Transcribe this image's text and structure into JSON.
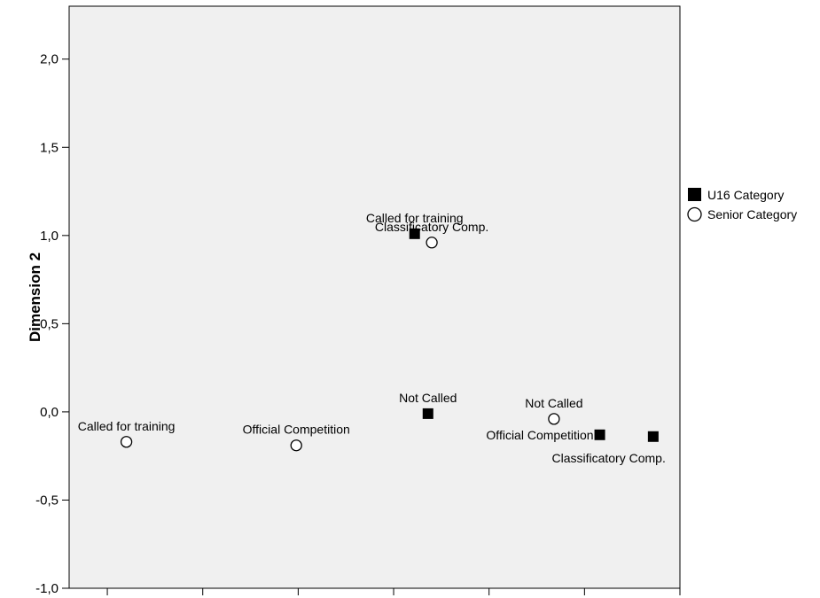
{
  "chart_data": {
    "type": "scatter",
    "title": "",
    "xlabel": "",
    "ylabel": "Dimension 2",
    "xlim": [
      -2.3,
      0.9
    ],
    "ylim": [
      -1.0,
      2.3
    ],
    "y_ticks": [
      {
        "value": 2.0,
        "label": "2,0"
      },
      {
        "value": 1.5,
        "label": "1,5"
      },
      {
        "value": 1.0,
        "label": "1,0"
      },
      {
        "value": 0.5,
        "label": "0,5"
      },
      {
        "value": 0.0,
        "label": "0,0"
      },
      {
        "value": -0.5,
        "label": "-0,5"
      },
      {
        "value": -1.0,
        "label": "-1,0"
      }
    ],
    "x_tick_values": [
      -2.1,
      -1.6,
      -1.1,
      -0.6,
      -0.1,
      0.4,
      0.9
    ],
    "grid": false,
    "legend_position": "right",
    "plot_background": "#f0f0f0",
    "series": [
      {
        "name": "U16 Category",
        "marker": "filled-square",
        "color": "#000000",
        "points": [
          {
            "x": -0.49,
            "y": 1.01,
            "label": "Called for training",
            "label_pos": "above"
          },
          {
            "x": -0.42,
            "y": -0.01,
            "label": "Not Called",
            "label_pos": "above"
          },
          {
            "x": 0.48,
            "y": -0.13,
            "label": "Official Competition",
            "label_pos": "left"
          },
          {
            "x": 0.76,
            "y": -0.14,
            "label": "Classificatory Comp.",
            "label_pos": "below-left"
          }
        ]
      },
      {
        "name": "Senior Category",
        "marker": "open-circle",
        "color": "#000000",
        "points": [
          {
            "x": -2.0,
            "y": -0.17,
            "label": "Called for training",
            "label_pos": "above"
          },
          {
            "x": -1.11,
            "y": -0.19,
            "label": "Official Competition",
            "label_pos": "above"
          },
          {
            "x": -0.4,
            "y": 0.96,
            "label": "Classificatory Comp.",
            "label_pos": "above"
          },
          {
            "x": 0.24,
            "y": -0.04,
            "label": "Not Called",
            "label_pos": "above"
          }
        ]
      }
    ]
  }
}
